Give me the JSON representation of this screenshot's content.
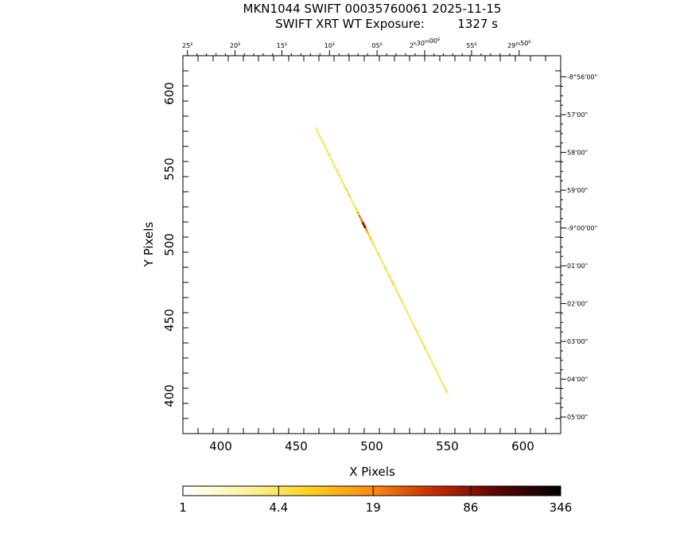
{
  "chart_data": {
    "type": "heatmap",
    "title": "MKN1044 SWIFT 00035760061 2025-11-15",
    "subtitle_label": "SWIFT XRT WT Exposure:",
    "subtitle_value": "1327 s",
    "xlabel": "X Pixels",
    "ylabel": "Y Pixels",
    "xlim": [
      375,
      625
    ],
    "ylim": [
      375,
      625
    ],
    "xticks": [
      400,
      450,
      500,
      550,
      600
    ],
    "yticks": [
      400,
      450,
      500,
      550,
      600
    ],
    "ra_ticks": [
      {
        "label": "25s",
        "x": 378
      },
      {
        "label": "20s",
        "x": 409.5
      },
      {
        "label": "15s",
        "x": 440.5
      },
      {
        "label": "10s",
        "x": 472
      },
      {
        "label": "05s",
        "x": 503.5
      },
      {
        "label": "2h30m00s",
        "x": 535
      },
      {
        "label": "55s",
        "x": 566
      },
      {
        "label": "29m50s",
        "x": 597.5
      }
    ],
    "dec_ticks": [
      {
        "label": "-8°56'00\"",
        "y": 611
      },
      {
        "label": "57'00\"",
        "y": 586
      },
      {
        "label": "58'00\"",
        "y": 561
      },
      {
        "label": "59'00\"",
        "y": 536
      },
      {
        "label": "-9°00'00\"",
        "y": 511
      },
      {
        "label": "01'00\"",
        "y": 486
      },
      {
        "label": "02'00\"",
        "y": 461
      },
      {
        "label": "03'00\"",
        "y": 436
      },
      {
        "label": "04'00\"",
        "y": 411
      },
      {
        "label": "05'00\"",
        "y": 386
      }
    ],
    "streak": {
      "start": [
        463,
        577
      ],
      "end": [
        550,
        402
      ],
      "peak": [
        492,
        512
      ],
      "peak_counts": 346
    },
    "colorbar": {
      "scale": "log",
      "ticks": [
        "1",
        "4.4",
        "19",
        "86",
        "346"
      ],
      "min": 1,
      "max": 346,
      "colors": [
        "#ffffff",
        "#fff4a0",
        "#ffd21e",
        "#ff8a0e",
        "#c62a00",
        "#5a0000",
        "#000000"
      ]
    }
  }
}
